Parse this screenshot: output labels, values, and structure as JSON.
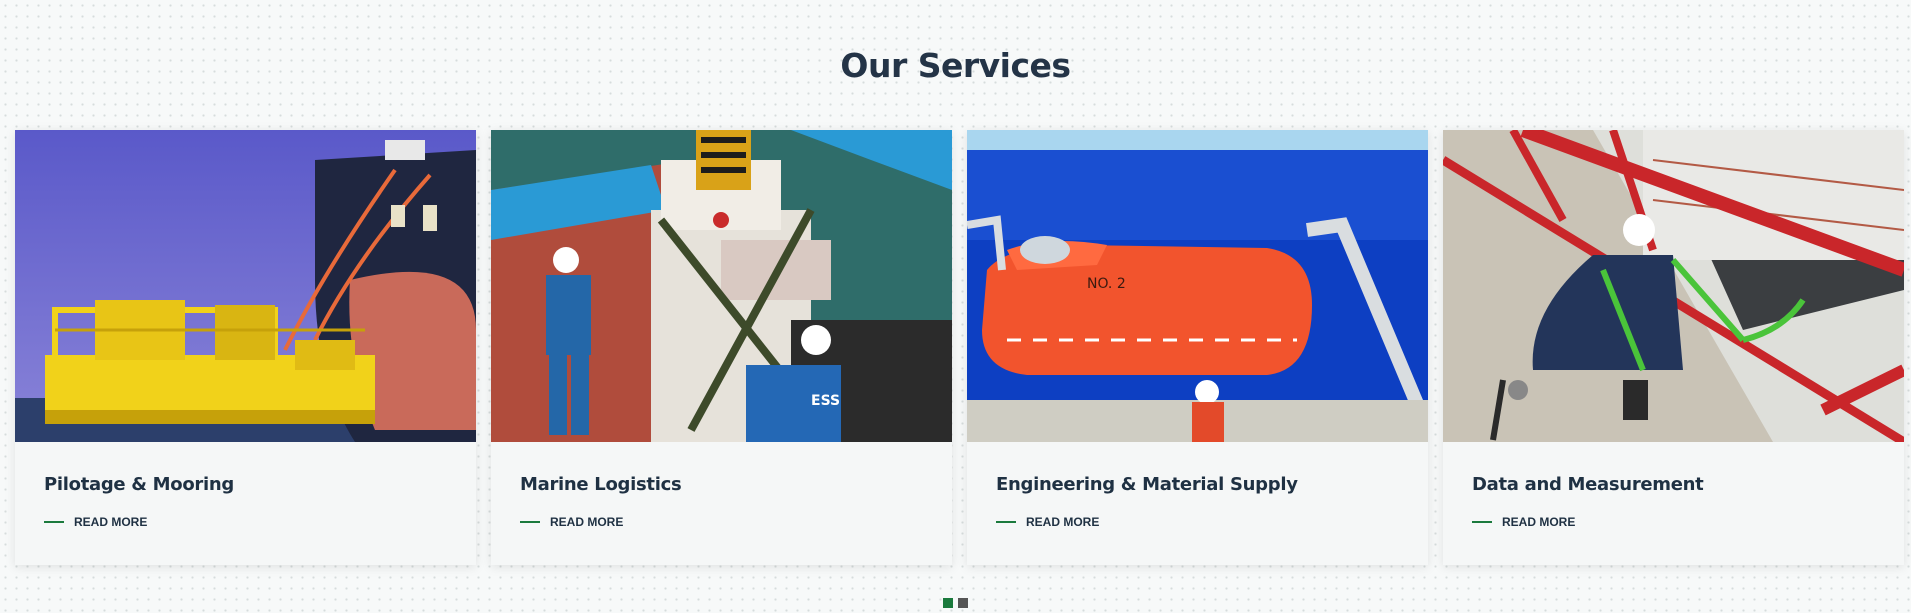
{
  "section": {
    "title": "Our Services"
  },
  "colors": {
    "accent": "#1b7a3d",
    "heading": "#243447",
    "inactive_dot": "#555555"
  },
  "cards": [
    {
      "title": "Pilotage & Mooring",
      "read_more": "READ MORE"
    },
    {
      "title": "Marine Logistics",
      "read_more": "READ MORE"
    },
    {
      "title": "Engineering & Material Supply",
      "read_more": "READ MORE"
    },
    {
      "title": "Data and Measurement",
      "read_more": "READ MORE"
    }
  ],
  "photos": {
    "lifeboat_label": "NO. 2",
    "worker_jacket": "ESS"
  },
  "carousel": {
    "pages": 2,
    "active": 1
  }
}
